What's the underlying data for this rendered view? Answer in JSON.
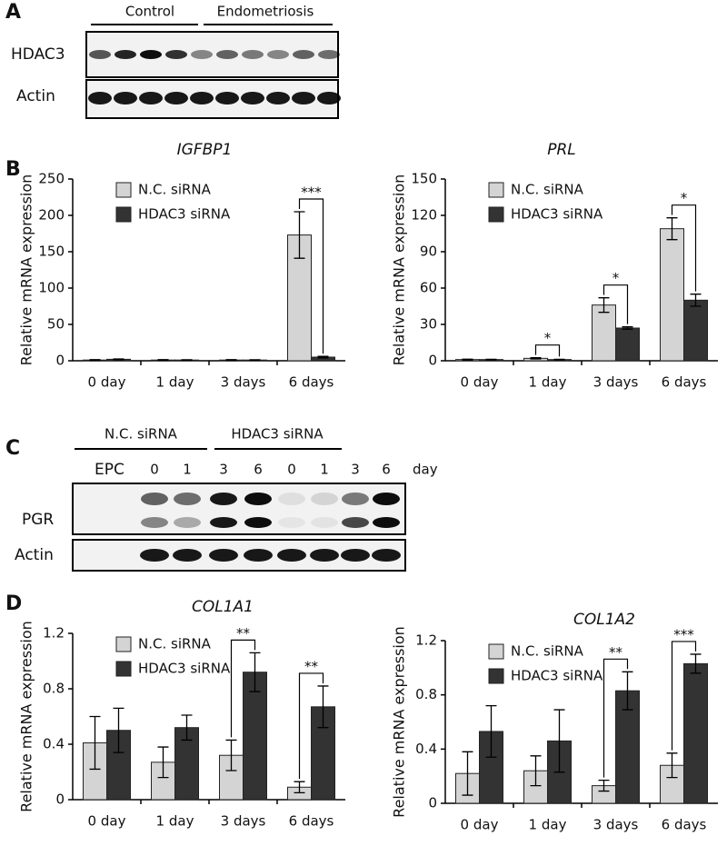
{
  "blots": {
    "panel_a": "A",
    "panel_c": "C",
    "a_groups": [
      "Control",
      "Endometriosis"
    ],
    "a_rows": [
      "HDAC3",
      "Actin"
    ],
    "c_groups": [
      "N.C. siRNA",
      "HDAC3 siRNA"
    ],
    "c_row_header": "EPC",
    "c_days": [
      "0",
      "1",
      "3",
      "6",
      "0",
      "1",
      "3",
      "6"
    ],
    "c_day_unit": "day",
    "c_rows": [
      "PGR",
      "Actin"
    ]
  },
  "panel_b": "B",
  "panel_d": "D",
  "chart_data": [
    {
      "type": "bar",
      "title": "IGFBP1",
      "ylabel": "Relative mRNA expression",
      "categories": [
        "0 day",
        "1 day",
        "3 days",
        "6 days"
      ],
      "series": [
        {
          "name": "N.C. siRNA",
          "color": "#d4d4d4",
          "values": [
            1,
            1,
            1,
            173
          ],
          "errors": [
            0.5,
            0.5,
            0.5,
            32
          ]
        },
        {
          "name": "HDAC3 siRNA",
          "color": "#333333",
          "values": [
            2,
            1,
            1,
            5
          ],
          "errors": [
            0.5,
            0.3,
            0.3,
            1
          ]
        }
      ],
      "ylim": [
        0,
        250
      ],
      "yticks": [
        0,
        50,
        100,
        150,
        200,
        250
      ],
      "legend": "upper left",
      "annotations": [
        {
          "text": "***",
          "category": "6 days"
        }
      ]
    },
    {
      "type": "bar",
      "title": "PRL",
      "ylabel": "Relative mRNA expression",
      "categories": [
        "0 day",
        "1 day",
        "3 days",
        "6 days"
      ],
      "series": [
        {
          "name": "N.C. siRNA",
          "color": "#d4d4d4",
          "values": [
            1,
            2,
            46,
            109
          ],
          "errors": [
            0.3,
            0.5,
            6,
            9
          ]
        },
        {
          "name": "HDAC3 siRNA",
          "color": "#333333",
          "values": [
            1,
            1,
            27,
            50
          ],
          "errors": [
            0.2,
            0.2,
            1,
            5
          ]
        }
      ],
      "ylim": [
        0,
        150
      ],
      "yticks": [
        0,
        30,
        60,
        90,
        120,
        150
      ],
      "legend": "upper left",
      "annotations": [
        {
          "text": "*",
          "category": "1 day"
        },
        {
          "text": "*",
          "category": "3 days"
        },
        {
          "text": "*",
          "category": "6 days"
        }
      ]
    },
    {
      "type": "bar",
      "title": "COL1A1",
      "ylabel": "Relative mRNA expression",
      "categories": [
        "0 day",
        "1 day",
        "3 days",
        "6 days"
      ],
      "series": [
        {
          "name": "N.C. siRNA",
          "color": "#d4d4d4",
          "values": [
            0.41,
            0.27,
            0.32,
            0.09
          ],
          "errors": [
            0.19,
            0.11,
            0.11,
            0.04
          ]
        },
        {
          "name": "HDAC3 siRNA",
          "color": "#333333",
          "values": [
            0.5,
            0.52,
            0.92,
            0.67
          ],
          "errors": [
            0.16,
            0.09,
            0.14,
            0.15
          ]
        }
      ],
      "ylim": [
        0,
        1.2
      ],
      "yticks": [
        0,
        0.4,
        0.8,
        1.2
      ],
      "legend": "upper left",
      "annotations": [
        {
          "text": "**",
          "category": "3 days"
        },
        {
          "text": "**",
          "category": "6 days"
        }
      ]
    },
    {
      "type": "bar",
      "title": "COL1A2",
      "ylabel": "Relative mRNA expression",
      "categories": [
        "0 day",
        "1 day",
        "3 days",
        "6 days"
      ],
      "series": [
        {
          "name": "N.C. siRNA",
          "color": "#d4d4d4",
          "values": [
            0.22,
            0.24,
            0.13,
            0.28
          ],
          "errors": [
            0.16,
            0.11,
            0.04,
            0.09
          ]
        },
        {
          "name": "HDAC3 siRNA",
          "color": "#333333",
          "values": [
            0.53,
            0.46,
            0.83,
            1.03
          ],
          "errors": [
            0.19,
            0.23,
            0.14,
            0.07
          ]
        }
      ],
      "ylim": [
        0,
        1.2
      ],
      "yticks": [
        0,
        0.4,
        0.8,
        1.2
      ],
      "legend": "upper left",
      "annotations": [
        {
          "text": "**",
          "category": "3 days"
        },
        {
          "text": "***",
          "category": "6 days"
        }
      ]
    }
  ]
}
